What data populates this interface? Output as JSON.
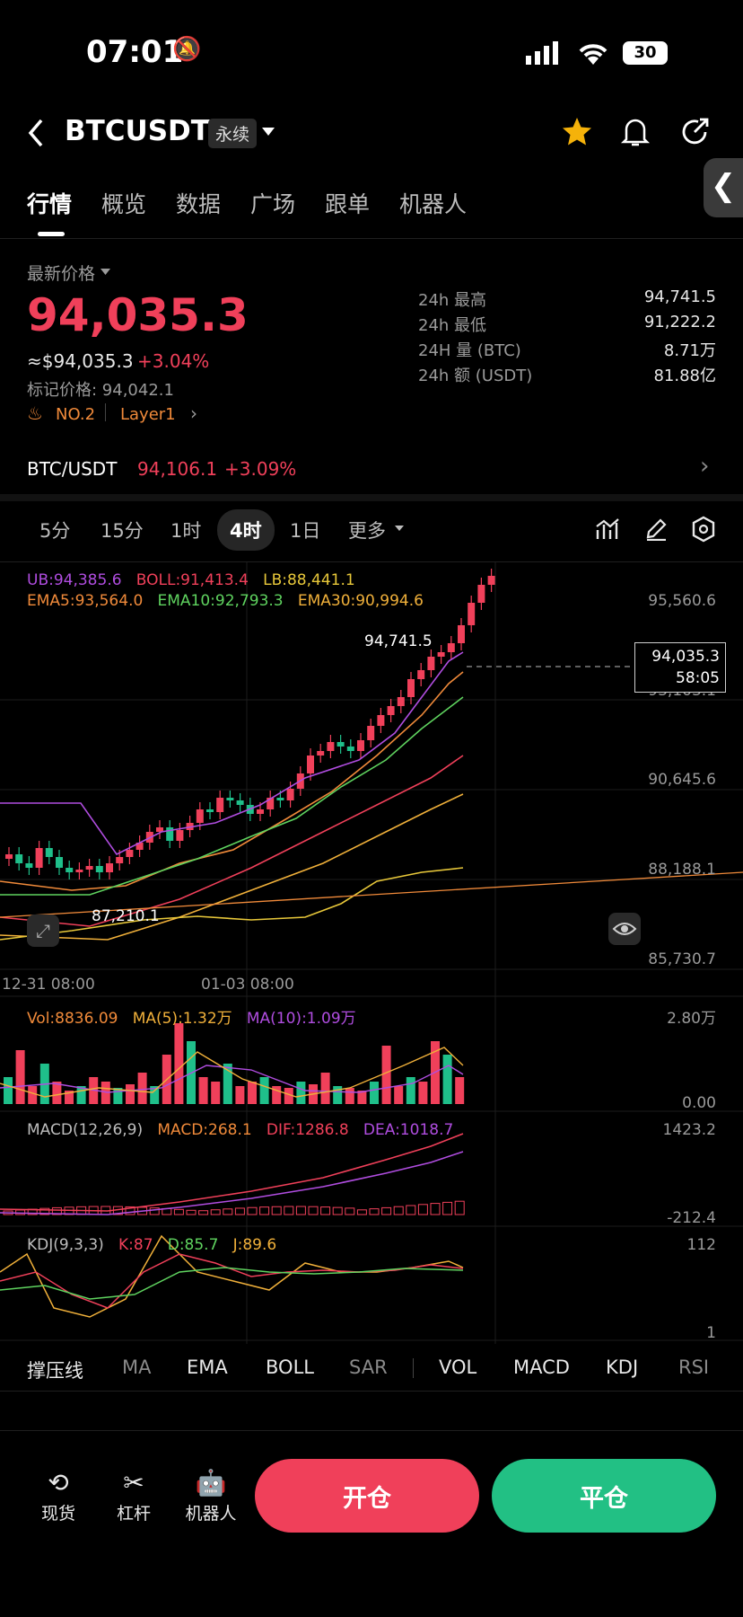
{
  "status": {
    "time": "07:01",
    "battery": "30"
  },
  "header": {
    "symbol": "BTCUSDT",
    "tag": "永续"
  },
  "tabs": [
    "行情",
    "概览",
    "数据",
    "广场",
    "跟单",
    "机器人"
  ],
  "price": {
    "label": "最新价格",
    "last": "94,035.3",
    "usd": "≈$94,035.3",
    "change": "+3.04%",
    "mark": "标记价格: 94,042.1",
    "rank": "NO.2",
    "sector": "Layer1"
  },
  "stats": [
    {
      "label": "24h  最高",
      "value": "94,741.5"
    },
    {
      "label": "24h  最低",
      "value": "91,222.2"
    },
    {
      "label": "24H  量 (BTC)",
      "value": "8.71万"
    },
    {
      "label": "24h  额 (USDT)",
      "value": "81.88亿"
    }
  ],
  "spot": {
    "pair": "BTC/USDT",
    "price": "94,106.1",
    "change": "+3.09%"
  },
  "timeframes": [
    "5分",
    "15分",
    "1时",
    "4时",
    "1日",
    "更多"
  ],
  "main_legend": {
    "ub": "UB:94,385.6",
    "boll": "BOLL:91,413.4",
    "lb": "LB:88,441.1",
    "ema5": "EMA5:93,564.0",
    "ema10": "EMA10:92,793.3",
    "ema30": "EMA30:90,994.6"
  },
  "price_axis": [
    "95,560.6",
    "93,103.1",
    "90,645.6",
    "88,188.1",
    "85,730.7"
  ],
  "high_label": "94,741.5",
  "low_label": "87,210.1",
  "current_box": {
    "price": "94,035.3",
    "countdown": "58:05"
  },
  "time_axis": [
    "12-31 08:00",
    "01-03 08:00"
  ],
  "vol_legend": {
    "vol": "Vol:8836.09",
    "ma5": "MA(5):1.32万",
    "ma10": "MA(10):1.09万"
  },
  "vol_axis": [
    "2.80万",
    "0.00"
  ],
  "macd_legend": {
    "title": "MACD(12,26,9)",
    "macd": "MACD:268.1",
    "dif": "DIF:1286.8",
    "dea": "DEA:1018.7"
  },
  "macd_axis": [
    "1423.2",
    "-212.4"
  ],
  "kdj_legend": {
    "title": "KDJ(9,3,3)",
    "k": "K:87",
    "d": "D:85.7",
    "j": "J:89.6"
  },
  "kdj_axis": [
    "112",
    "1"
  ],
  "indicators": [
    "撑压线",
    "MA",
    "EMA",
    "BOLL",
    "SAR",
    "VOL",
    "MACD",
    "KDJ",
    "RSI"
  ],
  "bottom_nav": [
    "现货",
    "杠杆",
    "机器人"
  ],
  "actions": {
    "open": "开仓",
    "close": "平仓"
  },
  "colors": {
    "up": "#f0405a",
    "down": "#1fbf8a",
    "bg": "#000000"
  }
}
